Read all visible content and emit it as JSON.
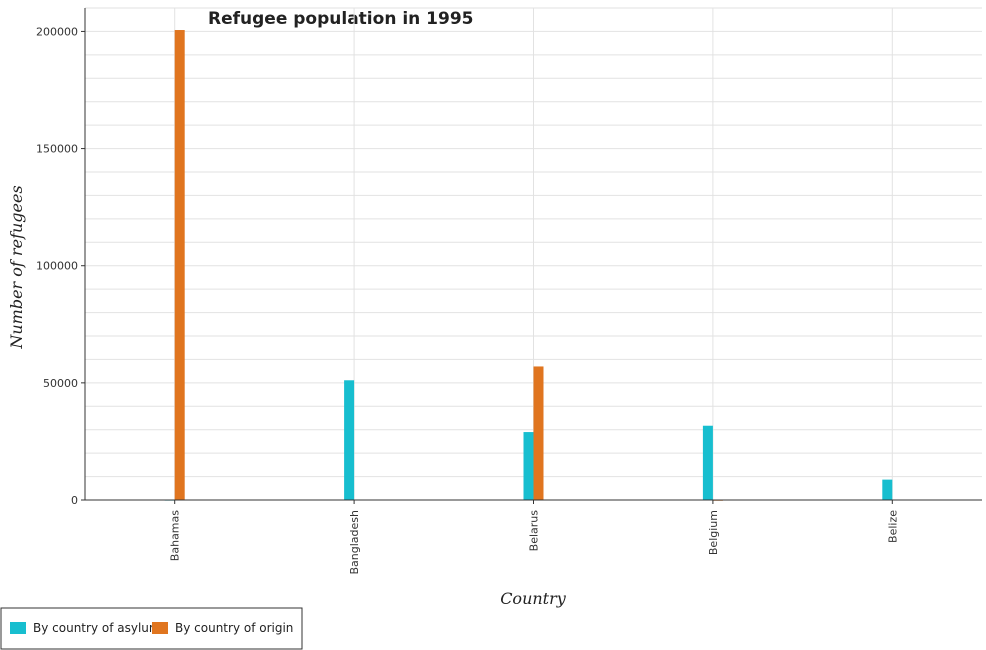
{
  "chart_data": {
    "type": "bar",
    "title": "Refugee population in 1995",
    "xlabel": "Country",
    "ylabel": "Number of refugees",
    "categories": [
      "Bahamas",
      "Bangladesh",
      "Belarus",
      "Belgium",
      "Belize"
    ],
    "series": [
      {
        "name": "By country of asylum",
        "color": "#17becf",
        "values": [
          80,
          51100,
          29000,
          31700,
          8700
        ]
      },
      {
        "name": "By country of origin",
        "color": "#e0751f",
        "values": [
          200600,
          200,
          57000,
          30,
          150
        ]
      }
    ],
    "ylim": [
      0,
      210000
    ],
    "yticks": [
      0,
      50000,
      100000,
      150000,
      200000
    ],
    "ytick_labels": [
      "0",
      "50000",
      "100000",
      "150000",
      "200000"
    ],
    "grid": true,
    "legend_position": "bottom-left"
  }
}
